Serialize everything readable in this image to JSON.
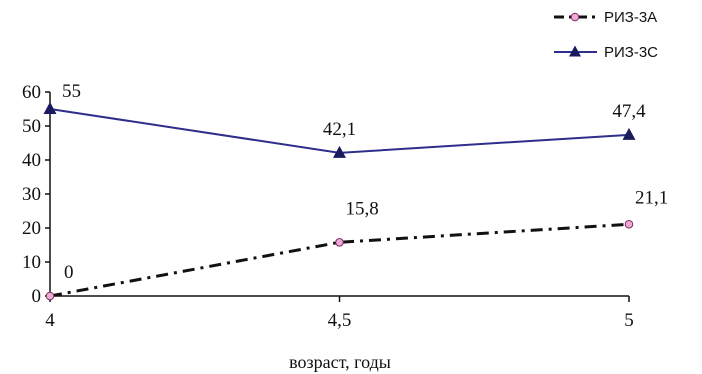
{
  "chart_data": {
    "type": "line",
    "title": "",
    "xlabel": "возраст, годы",
    "ylabel": "",
    "x": [
      "4",
      "4,5",
      "5"
    ],
    "ylim": [
      0,
      60
    ],
    "yticks": [
      "0",
      "10",
      "20",
      "30",
      "40",
      "50",
      "60"
    ],
    "grid": false,
    "legend_position": "top-right",
    "series": [
      {
        "name": "РИЗ-3А",
        "values": [
          0,
          15.8,
          21.1
        ],
        "labels": [
          "0",
          "15,8",
          "21,1"
        ],
        "color": "#111111",
        "marker_fill": "#f0a8d8",
        "marker": "circle",
        "line_style": "dash-dot"
      },
      {
        "name": "РИЗ-3С",
        "values": [
          55,
          42.1,
          47.4
        ],
        "labels": [
          "55",
          "42,1",
          "47,4"
        ],
        "color": "#2e2f8c",
        "marker": "triangle",
        "line_style": "solid"
      }
    ]
  }
}
